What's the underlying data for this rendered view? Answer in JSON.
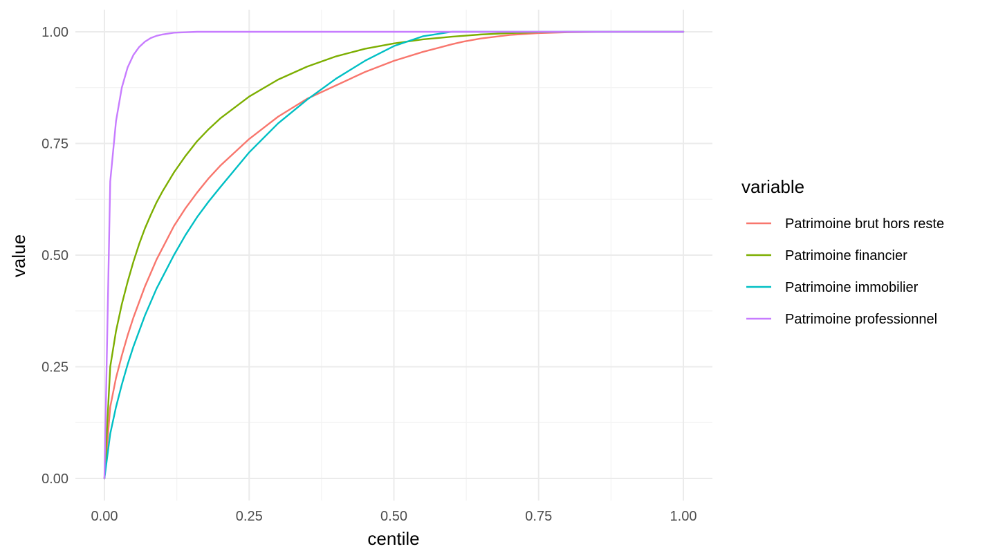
{
  "chart_data": {
    "type": "line",
    "title": "",
    "xlabel": "centile",
    "ylabel": "value",
    "xlim": [
      0,
      1
    ],
    "ylim": [
      0,
      1
    ],
    "x_ticks": [
      0,
      0.25,
      0.5,
      0.75,
      1
    ],
    "x_tick_labels": [
      "0.00",
      "0.25",
      "0.50",
      "0.75",
      "1.00"
    ],
    "y_ticks": [
      0,
      0.25,
      0.5,
      0.75,
      1
    ],
    "y_tick_labels": [
      "0.00",
      "0.25",
      "0.50",
      "0.75",
      "1.00"
    ],
    "grid": true,
    "legend": {
      "title": "variable",
      "position": "right"
    },
    "x": [
      0,
      0.01,
      0.02,
      0.03,
      0.04,
      0.05,
      0.06,
      0.07,
      0.08,
      0.09,
      0.1,
      0.12,
      0.14,
      0.16,
      0.18,
      0.2,
      0.25,
      0.3,
      0.35,
      0.4,
      0.45,
      0.5,
      0.55,
      0.6,
      0.62,
      0.65,
      0.7,
      0.75,
      0.8,
      0.9,
      1.0
    ],
    "series": [
      {
        "name": "Patrimoine brut hors reste",
        "color": "#F8766D",
        "values": [
          0,
          0.16,
          0.225,
          0.275,
          0.32,
          0.36,
          0.395,
          0.43,
          0.46,
          0.49,
          0.515,
          0.565,
          0.605,
          0.64,
          0.672,
          0.7,
          0.76,
          0.81,
          0.85,
          0.88,
          0.91,
          0.935,
          0.955,
          0.972,
          0.978,
          0.985,
          0.993,
          0.997,
          0.999,
          1.0,
          1.0
        ]
      },
      {
        "name": "Patrimoine financier",
        "color": "#7CAE00",
        "values": [
          0,
          0.25,
          0.33,
          0.39,
          0.44,
          0.485,
          0.525,
          0.56,
          0.59,
          0.618,
          0.642,
          0.685,
          0.722,
          0.755,
          0.782,
          0.806,
          0.855,
          0.893,
          0.922,
          0.945,
          0.962,
          0.974,
          0.983,
          0.989,
          0.991,
          0.994,
          0.997,
          0.999,
          1.0,
          1.0,
          1.0
        ]
      },
      {
        "name": "Patrimoine immobilier",
        "color": "#00BFC4",
        "values": [
          0,
          0.1,
          0.16,
          0.21,
          0.255,
          0.295,
          0.33,
          0.365,
          0.395,
          0.425,
          0.45,
          0.5,
          0.545,
          0.585,
          0.62,
          0.652,
          0.73,
          0.795,
          0.848,
          0.895,
          0.935,
          0.968,
          0.99,
          1.0,
          1.0,
          1.0,
          1.0,
          1.0,
          1.0,
          1.0,
          1.0
        ]
      },
      {
        "name": "Patrimoine professionnel",
        "color": "#C77CFF",
        "values": [
          0,
          0.665,
          0.8,
          0.875,
          0.92,
          0.948,
          0.966,
          0.978,
          0.986,
          0.991,
          0.994,
          0.998,
          0.999,
          1.0,
          1.0,
          1.0,
          1.0,
          1.0,
          1.0,
          1.0,
          1.0,
          1.0,
          1.0,
          1.0,
          1.0,
          1.0,
          1.0,
          1.0,
          1.0,
          1.0,
          1.0
        ]
      }
    ]
  }
}
